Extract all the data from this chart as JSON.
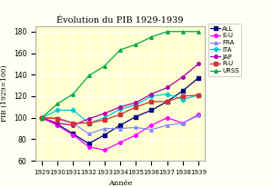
{
  "title": "Évolution du PIB 1929-1939",
  "xlabel": "Année",
  "ylabel": "PIB (1929=100)",
  "years": [
    1929,
    1930,
    1931,
    1932,
    1933,
    1934,
    1935,
    1936,
    1937,
    1938,
    1939
  ],
  "series": {
    "ALL": [
      100,
      94,
      85,
      76,
      84,
      93,
      101,
      107,
      115,
      125,
      137
    ],
    "E-U": [
      100,
      93,
      84,
      73,
      70,
      77,
      84,
      93,
      100,
      95,
      103
    ],
    "FRA": [
      100,
      100,
      95,
      85,
      90,
      90,
      91,
      89,
      93,
      95,
      102
    ],
    "ITA": [
      100,
      107,
      107,
      95,
      100,
      108,
      112,
      120,
      122,
      117,
      121
    ],
    "JAP": [
      100,
      95,
      93,
      99,
      104,
      110,
      114,
      122,
      128,
      138,
      150
    ],
    "R-U": [
      100,
      99,
      95,
      95,
      98,
      103,
      110,
      115,
      115,
      120,
      121
    ],
    "URSS": [
      100,
      113,
      122,
      139,
      148,
      163,
      168,
      175,
      180,
      180,
      180
    ]
  },
  "colors": {
    "ALL": "#000080",
    "E-U": "#FF00FF",
    "FRA": "#8888FF",
    "ITA": "#00CCCC",
    "JAP": "#AA00AA",
    "R-U": "#CC3333",
    "URSS": "#00AA44"
  },
  "markers": {
    "ALL": "s",
    "E-U": "o",
    "FRA": "^",
    "ITA": "D",
    "JAP": "o",
    "R-U": "s",
    "URSS": "^"
  },
  "ylim": [
    60,
    185
  ],
  "yticks": [
    60,
    80,
    100,
    120,
    140,
    160,
    180
  ],
  "bg_color": "#FFFFF4",
  "plot_bg": "#FFFFD0"
}
